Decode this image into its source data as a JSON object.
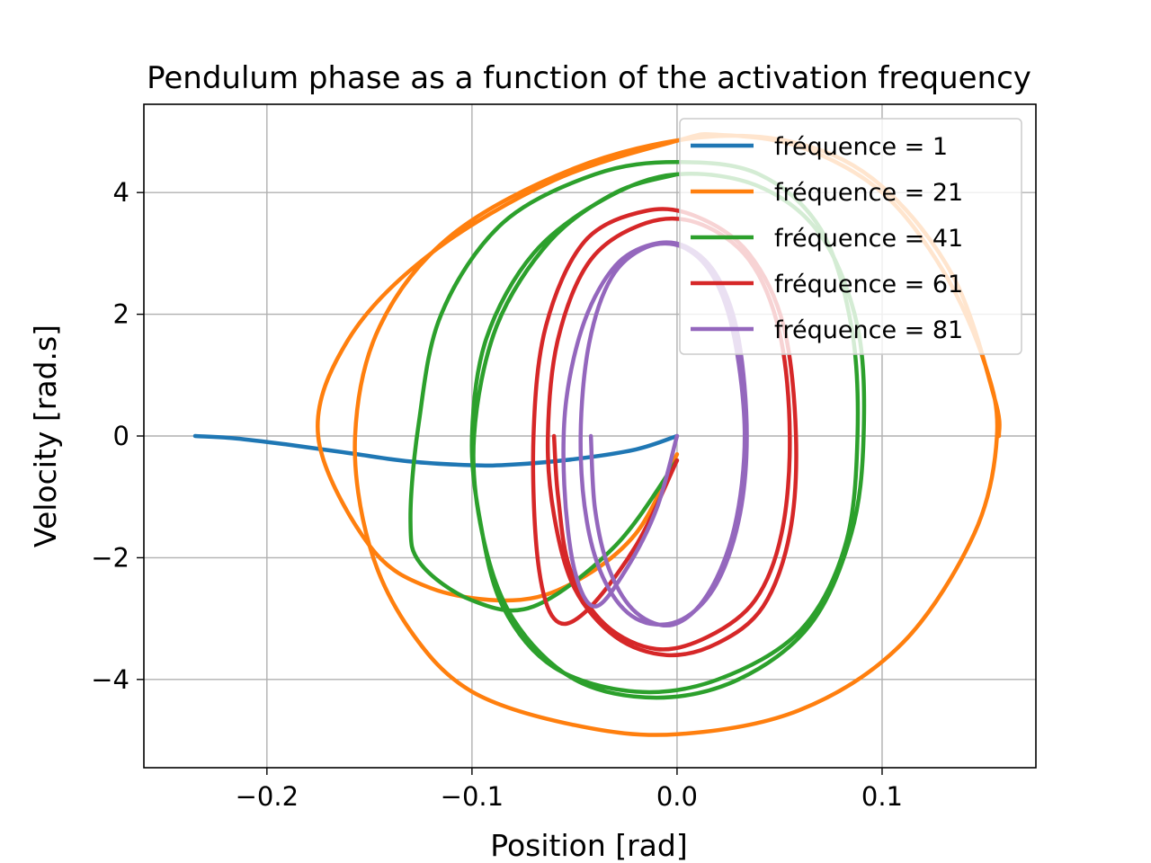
{
  "chart_data": {
    "type": "line",
    "title": "Pendulum phase as a function of the activation frequency",
    "xlabel": "Position [rad]",
    "ylabel": "Velocity [rad.s]",
    "xlim": [
      -0.26,
      0.175
    ],
    "ylim": [
      -5.45,
      5.45
    ],
    "xticks": [
      -0.2,
      -0.1,
      0.0,
      0.1
    ],
    "xtick_labels": [
      "−0.2",
      "−0.1",
      "0.0",
      "0.1"
    ],
    "yticks": [
      -4,
      -2,
      0,
      2,
      4
    ],
    "ytick_labels": [
      "−4",
      "−2",
      "0",
      "2",
      "4"
    ],
    "grid": true,
    "legend_position": "top-right",
    "series": [
      {
        "name": "fréquence = 1",
        "color": "#1f77b4",
        "points": [
          [
            0.0,
            0.0
          ],
          [
            -0.02,
            -0.22
          ],
          [
            -0.05,
            -0.38
          ],
          [
            -0.08,
            -0.47
          ],
          [
            -0.1,
            -0.48
          ],
          [
            -0.13,
            -0.42
          ],
          [
            -0.16,
            -0.28
          ],
          [
            -0.19,
            -0.14
          ],
          [
            -0.215,
            -0.04
          ],
          [
            -0.235,
            0.0
          ]
        ]
      },
      {
        "name": "fréquence = 21",
        "color": "#ff7f0e",
        "points": [
          [
            0.0,
            -0.3
          ],
          [
            -0.02,
            -1.6
          ],
          [
            -0.05,
            -2.4
          ],
          [
            -0.08,
            -2.7
          ],
          [
            -0.12,
            -2.5
          ],
          [
            -0.15,
            -1.8
          ],
          [
            -0.175,
            0.0
          ],
          [
            -0.16,
            1.6
          ],
          [
            -0.12,
            3.0
          ],
          [
            -0.06,
            4.2
          ],
          [
            0.0,
            4.85
          ],
          [
            0.02,
            4.95
          ],
          [
            0.06,
            4.75
          ],
          [
            0.1,
            4.0
          ],
          [
            0.13,
            2.7
          ],
          [
            0.15,
            1.2
          ],
          [
            0.156,
            0.0
          ],
          [
            0.145,
            -1.6
          ],
          [
            0.11,
            -3.4
          ],
          [
            0.06,
            -4.5
          ],
          [
            0.0,
            -4.9
          ],
          [
            -0.05,
            -4.75
          ],
          [
            -0.1,
            -4.2
          ],
          [
            -0.13,
            -3.2
          ],
          [
            -0.15,
            -1.8
          ],
          [
            -0.157,
            0.0
          ],
          [
            -0.145,
            1.8
          ],
          [
            -0.11,
            3.3
          ],
          [
            -0.05,
            4.4
          ],
          [
            0.01,
            4.9
          ],
          [
            0.06,
            4.8
          ],
          [
            0.1,
            4.1
          ],
          [
            0.135,
            2.6
          ],
          [
            0.155,
            0.6
          ],
          [
            0.157,
            0.0
          ]
        ]
      },
      {
        "name": "fréquence = 41",
        "color": "#2ca02c",
        "points": [
          [
            0.0,
            -0.4
          ],
          [
            -0.03,
            -1.8
          ],
          [
            -0.07,
            -2.8
          ],
          [
            -0.1,
            -2.7
          ],
          [
            -0.125,
            -2.1
          ],
          [
            -0.13,
            -1.4
          ],
          [
            -0.126,
            0.2
          ],
          [
            -0.115,
            2.0
          ],
          [
            -0.085,
            3.5
          ],
          [
            -0.04,
            4.3
          ],
          [
            0.0,
            4.5
          ],
          [
            0.04,
            4.3
          ],
          [
            0.07,
            3.4
          ],
          [
            0.085,
            1.8
          ],
          [
            0.088,
            0.0
          ],
          [
            0.082,
            -1.8
          ],
          [
            0.06,
            -3.2
          ],
          [
            0.02,
            -4.0
          ],
          [
            -0.02,
            -4.2
          ],
          [
            -0.06,
            -3.8
          ],
          [
            -0.085,
            -2.8
          ],
          [
            -0.096,
            -1.4
          ],
          [
            -0.1,
            0.0
          ],
          [
            -0.093,
            1.6
          ],
          [
            -0.07,
            3.0
          ],
          [
            -0.035,
            3.9
          ],
          [
            0.0,
            4.3
          ],
          [
            0.04,
            4.1
          ],
          [
            0.07,
            3.3
          ],
          [
            0.088,
            1.8
          ],
          [
            0.091,
            0.0
          ],
          [
            0.085,
            -1.6
          ],
          [
            0.065,
            -3.1
          ],
          [
            0.03,
            -4.0
          ],
          [
            -0.01,
            -4.3
          ],
          [
            -0.05,
            -4.0
          ],
          [
            -0.08,
            -3.0
          ],
          [
            -0.095,
            -1.6
          ],
          [
            -0.099,
            0.0
          ],
          [
            -0.088,
            1.8
          ],
          [
            -0.062,
            3.2
          ],
          [
            -0.03,
            4.0
          ],
          [
            0.0,
            4.3
          ]
        ]
      },
      {
        "name": "fréquence = 61",
        "color": "#d62728",
        "points": [
          [
            0.0,
            -0.4
          ],
          [
            -0.02,
            -1.8
          ],
          [
            -0.045,
            -2.9
          ],
          [
            -0.06,
            -3.0
          ],
          [
            -0.068,
            -2.0
          ],
          [
            -0.07,
            0.0
          ],
          [
            -0.064,
            1.8
          ],
          [
            -0.045,
            3.2
          ],
          [
            -0.015,
            3.7
          ],
          [
            0.01,
            3.6
          ],
          [
            0.035,
            3.0
          ],
          [
            0.052,
            1.8
          ],
          [
            0.058,
            0.0
          ],
          [
            0.055,
            -1.6
          ],
          [
            0.042,
            -2.8
          ],
          [
            0.02,
            -3.4
          ],
          [
            -0.005,
            -3.6
          ],
          [
            -0.03,
            -3.3
          ],
          [
            -0.05,
            -2.5
          ],
          [
            -0.06,
            -1.3
          ],
          [
            -0.063,
            0.0
          ],
          [
            -0.058,
            1.6
          ],
          [
            -0.042,
            2.9
          ],
          [
            -0.015,
            3.5
          ],
          [
            0.01,
            3.5
          ],
          [
            0.035,
            2.9
          ],
          [
            0.05,
            1.7
          ],
          [
            0.055,
            0.0
          ],
          [
            0.051,
            -1.6
          ],
          [
            0.038,
            -2.7
          ],
          [
            0.015,
            -3.3
          ],
          [
            -0.01,
            -3.5
          ],
          [
            -0.035,
            -3.1
          ],
          [
            -0.052,
            -2.2
          ],
          [
            -0.058,
            -1.0
          ],
          [
            -0.06,
            0.0
          ]
        ]
      },
      {
        "name": "fréquence = 81",
        "color": "#9467bd",
        "points": [
          [
            0.0,
            0.0
          ],
          [
            -0.01,
            -1.2
          ],
          [
            -0.025,
            -2.2
          ],
          [
            -0.04,
            -2.8
          ],
          [
            -0.05,
            -2.2
          ],
          [
            -0.055,
            -0.8
          ],
          [
            -0.054,
            0.6
          ],
          [
            -0.045,
            1.9
          ],
          [
            -0.03,
            2.8
          ],
          [
            -0.012,
            3.15
          ],
          [
            0.005,
            3.1
          ],
          [
            0.02,
            2.6
          ],
          [
            0.03,
            1.6
          ],
          [
            0.034,
            0.0
          ],
          [
            0.03,
            -1.4
          ],
          [
            0.018,
            -2.5
          ],
          [
            0.0,
            -3.05
          ],
          [
            -0.02,
            -3.0
          ],
          [
            -0.035,
            -2.4
          ],
          [
            -0.044,
            -1.4
          ],
          [
            -0.047,
            0.0
          ],
          [
            -0.043,
            1.5
          ],
          [
            -0.032,
            2.6
          ],
          [
            -0.015,
            3.1
          ],
          [
            0.003,
            3.1
          ],
          [
            0.018,
            2.6
          ],
          [
            0.028,
            1.6
          ],
          [
            0.033,
            0.0
          ],
          [
            0.028,
            -1.5
          ],
          [
            0.015,
            -2.6
          ],
          [
            -0.002,
            -3.1
          ],
          [
            -0.02,
            -2.9
          ],
          [
            -0.033,
            -2.2
          ],
          [
            -0.04,
            -1.2
          ],
          [
            -0.042,
            0.0
          ]
        ]
      }
    ]
  }
}
